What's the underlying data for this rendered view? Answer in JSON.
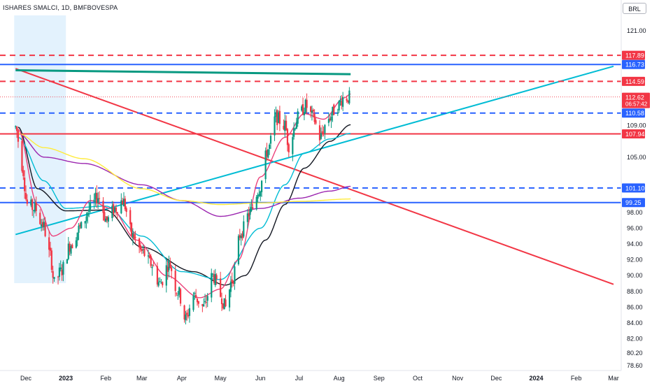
{
  "header": {
    "symbol_title": "ISHARES SMALCI, 1D, BMFBOVESPA",
    "currency": "BRL"
  },
  "chart_data": {
    "type": "candlestick",
    "y_range": [
      77.9,
      123.0
    ],
    "y_ticks": [
      "121.00",
      "109.00",
      "105.00",
      "98.00",
      "96.00",
      "94.00",
      "92.00",
      "90.00",
      "88.00",
      "86.00",
      "84.00",
      "82.00",
      "80.20",
      "78.60"
    ],
    "x_axis": {
      "labels": [
        "Dec",
        "2023",
        "Feb",
        "Mar",
        "Apr",
        "May",
        "Jun",
        "Jul",
        "Aug",
        "Sep",
        "Oct",
        "Nov",
        "Dec",
        "2024",
        "Feb",
        "Mar"
      ],
      "bold_labels": [
        "2023",
        "2024"
      ]
    },
    "current_price": {
      "value": "112.62",
      "countdown": "06:57:42",
      "color": "#f23645"
    },
    "horizontal_levels": [
      {
        "label": "117.89",
        "value": 117.89,
        "color": "#f23645",
        "style": "dashed"
      },
      {
        "label": "116.73",
        "value": 116.73,
        "color": "#2962ff",
        "style": "solid"
      },
      {
        "label": "114.59",
        "value": 114.59,
        "color": "#f23645",
        "style": "dashed"
      },
      {
        "label": "110.58",
        "value": 110.58,
        "color": "#2962ff",
        "style": "dashed"
      },
      {
        "label": "107.94",
        "value": 107.94,
        "color": "#f23645",
        "style": "solid"
      },
      {
        "label": "101.10",
        "value": 101.1,
        "color": "#2962ff",
        "style": "dashed"
      },
      {
        "label": "99.25",
        "value": 99.25,
        "color": "#2962ff",
        "style": "solid"
      }
    ],
    "trend_lines": [
      {
        "name": "descending",
        "color": "#f23645",
        "points": [
          [
            "2022-11-23",
            116.2
          ],
          [
            "2024-03-01",
            88.9
          ]
        ]
      },
      {
        "name": "ascending",
        "color": "#00bcd4",
        "points": [
          [
            "2022-11-23",
            95.2
          ],
          [
            "2024-03-01",
            116.5
          ]
        ]
      },
      {
        "name": "flat",
        "color": "#089981",
        "points": [
          [
            "2022-11-23",
            116.0
          ],
          [
            "2023-08-10",
            115.5
          ]
        ]
      }
    ],
    "highlight_region": {
      "from": "2022-11-23",
      "to": "2022-12-31",
      "color": "#e3f2fd"
    },
    "moving_averages": [
      {
        "color": "#131722",
        "anchors": [
          [
            "2022-11-25",
            108.8
          ],
          [
            "2022-12-10",
            101.0
          ],
          [
            "2023-01-01",
            98.2
          ],
          [
            "2023-02-01",
            98.3
          ],
          [
            "2023-03-01",
            93.6
          ],
          [
            "2023-04-10",
            90.5
          ],
          [
            "2023-05-05",
            88.8
          ],
          [
            "2023-05-20",
            90.0
          ],
          [
            "2023-06-05",
            94.5
          ],
          [
            "2023-06-20",
            99.0
          ],
          [
            "2023-07-05",
            103.6
          ],
          [
            "2023-07-25",
            107.0
          ],
          [
            "2023-08-10",
            109.1
          ]
        ]
      },
      {
        "color": "#00bcd4",
        "anchors": [
          [
            "2022-11-25",
            107.5
          ],
          [
            "2022-12-15",
            102.0
          ],
          [
            "2023-01-01",
            98.5
          ],
          [
            "2023-02-01",
            98.8
          ],
          [
            "2023-03-01",
            95.0
          ],
          [
            "2023-04-01",
            90.5
          ],
          [
            "2023-05-01",
            89.5
          ],
          [
            "2023-06-01",
            96.0
          ],
          [
            "2023-06-20",
            101.5
          ],
          [
            "2023-07-05",
            105.5
          ],
          [
            "2023-07-25",
            107.3
          ],
          [
            "2023-08-10",
            108.0
          ]
        ]
      },
      {
        "color": "#9c27b0",
        "anchors": [
          [
            "2022-11-25",
            108.0
          ],
          [
            "2022-12-15",
            105.0
          ],
          [
            "2023-01-15",
            104.2
          ],
          [
            "2023-03-01",
            101.5
          ],
          [
            "2023-04-01",
            99.5
          ],
          [
            "2023-05-01",
            97.5
          ],
          [
            "2023-06-01",
            98.5
          ],
          [
            "2023-07-01",
            99.8
          ],
          [
            "2023-07-25",
            100.7
          ],
          [
            "2023-08-10",
            101.3
          ]
        ]
      },
      {
        "color": "#ffeb3b",
        "anchors": [
          [
            "2022-11-25",
            108.0
          ],
          [
            "2022-12-15",
            106.2
          ],
          [
            "2023-01-15",
            104.8
          ],
          [
            "2023-03-01",
            101.0
          ],
          [
            "2023-04-01",
            99.5
          ],
          [
            "2023-05-01",
            99.0
          ],
          [
            "2023-06-01",
            99.2
          ],
          [
            "2023-07-01",
            99.4
          ],
          [
            "2023-08-10",
            99.7
          ]
        ]
      },
      {
        "color": "#ec407a",
        "anchors": [
          [
            "2022-11-25",
            108.5
          ],
          [
            "2022-12-10",
            99.0
          ],
          [
            "2022-12-22",
            95.0
          ],
          [
            "2023-01-05",
            96.0
          ],
          [
            "2023-01-20",
            99.5
          ],
          [
            "2023-02-05",
            98.5
          ],
          [
            "2023-02-25",
            94.5
          ],
          [
            "2023-03-20",
            90.0
          ],
          [
            "2023-04-15",
            87.2
          ],
          [
            "2023-05-01",
            88.3
          ],
          [
            "2023-05-15",
            92.0
          ],
          [
            "2023-06-01",
            102.5
          ],
          [
            "2023-06-20",
            107.5
          ],
          [
            "2023-07-05",
            110.5
          ],
          [
            "2023-07-20",
            109.8
          ],
          [
            "2023-08-05",
            112.5
          ],
          [
            "2023-08-10",
            113.0
          ]
        ]
      }
    ],
    "price_path": [
      [
        "2022-11-23",
        108.8
      ],
      [
        "2022-11-28",
        104.0
      ],
      [
        "2022-12-02",
        99.0
      ],
      [
        "2022-12-08",
        98.5
      ],
      [
        "2022-12-14",
        96.5
      ],
      [
        "2022-12-20",
        92.5
      ],
      [
        "2022-12-23",
        89.0
      ],
      [
        "2022-12-28",
        90.5
      ],
      [
        "2023-01-05",
        94.0
      ],
      [
        "2023-01-12",
        96.0
      ],
      [
        "2023-01-20",
        98.5
      ],
      [
        "2023-01-26",
        100.0
      ],
      [
        "2023-02-02",
        97.0
      ],
      [
        "2023-02-08",
        98.5
      ],
      [
        "2023-02-14",
        99.5
      ],
      [
        "2023-02-22",
        95.0
      ],
      [
        "2023-03-01",
        93.0
      ],
      [
        "2023-03-08",
        91.5
      ],
      [
        "2023-03-15",
        89.0
      ],
      [
        "2023-03-22",
        91.5
      ],
      [
        "2023-03-29",
        88.0
      ],
      [
        "2023-04-04",
        84.5
      ],
      [
        "2023-04-10",
        87.5
      ],
      [
        "2023-04-18",
        86.0
      ],
      [
        "2023-04-25",
        90.0
      ],
      [
        "2023-05-01",
        87.5
      ],
      [
        "2023-05-05",
        86.0
      ],
      [
        "2023-05-10",
        89.5
      ],
      [
        "2023-05-17",
        95.5
      ],
      [
        "2023-05-24",
        98.0
      ],
      [
        "2023-05-31",
        101.0
      ],
      [
        "2023-06-07",
        106.0
      ],
      [
        "2023-06-13",
        110.0
      ],
      [
        "2023-06-20",
        109.0
      ],
      [
        "2023-06-23",
        106.5
      ],
      [
        "2023-06-30",
        110.0
      ],
      [
        "2023-07-06",
        111.5
      ],
      [
        "2023-07-12",
        110.0
      ],
      [
        "2023-07-17",
        107.5
      ],
      [
        "2023-07-24",
        110.0
      ],
      [
        "2023-07-31",
        111.5
      ],
      [
        "2023-08-04",
        112.5
      ],
      [
        "2023-08-09",
        112.6
      ]
    ]
  }
}
